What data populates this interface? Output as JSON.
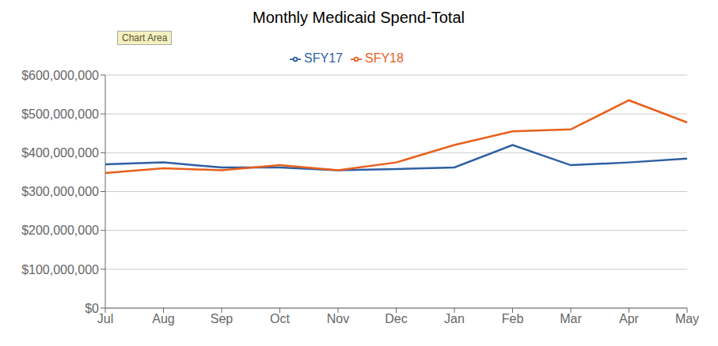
{
  "chart_data": {
    "type": "line",
    "title": "Monthly Medicaid Spend-Total",
    "annotations": [
      "Chart Area"
    ],
    "categories": [
      "Jul",
      "Aug",
      "Sep",
      "Oct",
      "Nov",
      "Dec",
      "Jan",
      "Feb",
      "Mar",
      "Apr",
      "May"
    ],
    "series": [
      {
        "name": "SFY17",
        "color": "#2E5FA3",
        "values": [
          370000000,
          375000000,
          362000000,
          362000000,
          355000000,
          358000000,
          362000000,
          420000000,
          368000000,
          375000000,
          385000000
        ]
      },
      {
        "name": "SFY18",
        "color": "#E8601C",
        "values": [
          348000000,
          360000000,
          355000000,
          368000000,
          355000000,
          375000000,
          420000000,
          455000000,
          460000000,
          535000000,
          478000000
        ]
      }
    ],
    "ylim": [
      0,
      600000000
    ],
    "yticks": [
      {
        "value": 0,
        "label": "$0"
      },
      {
        "value": 100000000,
        "label": "$100,000,000"
      },
      {
        "value": 200000000,
        "label": "$200,000,000"
      },
      {
        "value": 300000000,
        "label": "$300,000,000"
      },
      {
        "value": 400000000,
        "label": "$400,000,000"
      },
      {
        "value": 500000000,
        "label": "$500,000,000"
      },
      {
        "value": 600000000,
        "label": "$600,000,000"
      }
    ],
    "grid": true,
    "legend": "top"
  }
}
